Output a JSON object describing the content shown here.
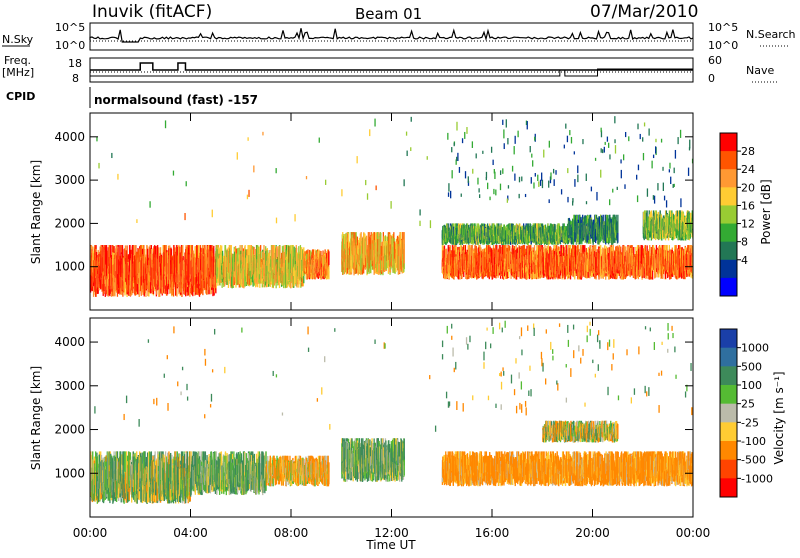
{
  "header": {
    "station": "Inuvik (fitACF)",
    "beam": "Beam 01",
    "date": "07/Mar/2010"
  },
  "noise_panel": {
    "left_label": "N.Sky",
    "right_label": "N.Search",
    "left_ticks": [
      "10^5",
      "10^0"
    ],
    "right_ticks": [
      "10^5",
      "10^0"
    ]
  },
  "freq_panel": {
    "left_label": "Freq.",
    "left_unit": "[MHz]",
    "right_label": "Nave",
    "left_ticks": [
      "18",
      "8"
    ],
    "right_ticks": [
      "60",
      "0"
    ]
  },
  "cpid_panel": {
    "label": "CPID",
    "text": "normalsound (fast) -157"
  },
  "power_panel": {
    "ylabel": "Slant Range [km]",
    "colorbar_label": "Power [dB]",
    "colorbar_ticks": [
      "28",
      "24",
      "20",
      "16",
      "12",
      "8",
      "4"
    ],
    "colorbar_colors": [
      "#ff0000",
      "#ff5500",
      "#ff9933",
      "#ffcc33",
      "#99cc33",
      "#33aa33",
      "#227755",
      "#003399",
      "#0000ff"
    ]
  },
  "velocity_panel": {
    "ylabel": "Slant Range [km]",
    "colorbar_label": "Velocity [m s⁻¹]",
    "colorbar_ticks": [
      "1000",
      "500",
      "100",
      "25",
      "-25",
      "-100",
      "-500",
      "-1000"
    ],
    "colorbar_colors": [
      "#1a3fa8",
      "#2f6f9f",
      "#3d8a5a",
      "#55bb33",
      "#bbbbaa",
      "#ffcc33",
      "#ff8800",
      "#ff4400",
      "#ff0000"
    ]
  },
  "xaxis": {
    "label": "Time UT",
    "ticks": [
      "00:00",
      "04:00",
      "08:00",
      "12:00",
      "16:00",
      "20:00",
      "00:00"
    ]
  },
  "chart_data": {
    "type": "heatmap",
    "title": "Inuvik (fitACF)",
    "subtitle": "Beam 01",
    "date": "07/Mar/2010",
    "xlabel": "Time UT",
    "ylabel": "Slant Range [km]",
    "x_range_hours": [
      0,
      24
    ],
    "y_ticks_km": [
      1000,
      2000,
      3000,
      4000
    ],
    "power_scale_db": [
      0,
      30
    ],
    "velocity_scale_ms": [
      -1000,
      1000
    ],
    "power_regions": [
      {
        "t0": 0.0,
        "t1": 5.0,
        "r0": 300,
        "r1": 1500,
        "power_db": 25
      },
      {
        "t0": 5.0,
        "t1": 8.5,
        "r0": 500,
        "r1": 1500,
        "power_db": 18
      },
      {
        "t0": 8.5,
        "t1": 9.5,
        "r0": 700,
        "r1": 1400,
        "power_db": 22
      },
      {
        "t0": 10.0,
        "t1": 12.5,
        "r0": 800,
        "r1": 1800,
        "power_db": 20
      },
      {
        "t0": 14.0,
        "t1": 24.0,
        "r0": 700,
        "r1": 1500,
        "power_db": 24
      },
      {
        "t0": 14.0,
        "t1": 19.0,
        "r0": 1500,
        "r1": 2000,
        "power_db": 12
      },
      {
        "t0": 19.0,
        "t1": 21.0,
        "r0": 1500,
        "r1": 2200,
        "power_db": 10
      },
      {
        "t0": 22.0,
        "t1": 24.0,
        "r0": 1600,
        "r1": 2300,
        "power_db": 14
      }
    ],
    "velocity_regions": [
      {
        "t0": 0.0,
        "t1": 4.0,
        "r0": 300,
        "r1": 1500,
        "velocity": 50
      },
      {
        "t0": 4.0,
        "t1": 7.0,
        "r0": 500,
        "r1": 1500,
        "velocity": 100
      },
      {
        "t0": 7.0,
        "t1": 9.5,
        "r0": 700,
        "r1": 1400,
        "velocity": -100
      },
      {
        "t0": 10.0,
        "t1": 12.5,
        "r0": 800,
        "r1": 1800,
        "velocity": 100
      },
      {
        "t0": 14.0,
        "t1": 24.0,
        "r0": 700,
        "r1": 1500,
        "velocity": -200
      },
      {
        "t0": 18.0,
        "t1": 21.0,
        "r0": 1700,
        "r1": 2200,
        "velocity": 0
      }
    ]
  }
}
